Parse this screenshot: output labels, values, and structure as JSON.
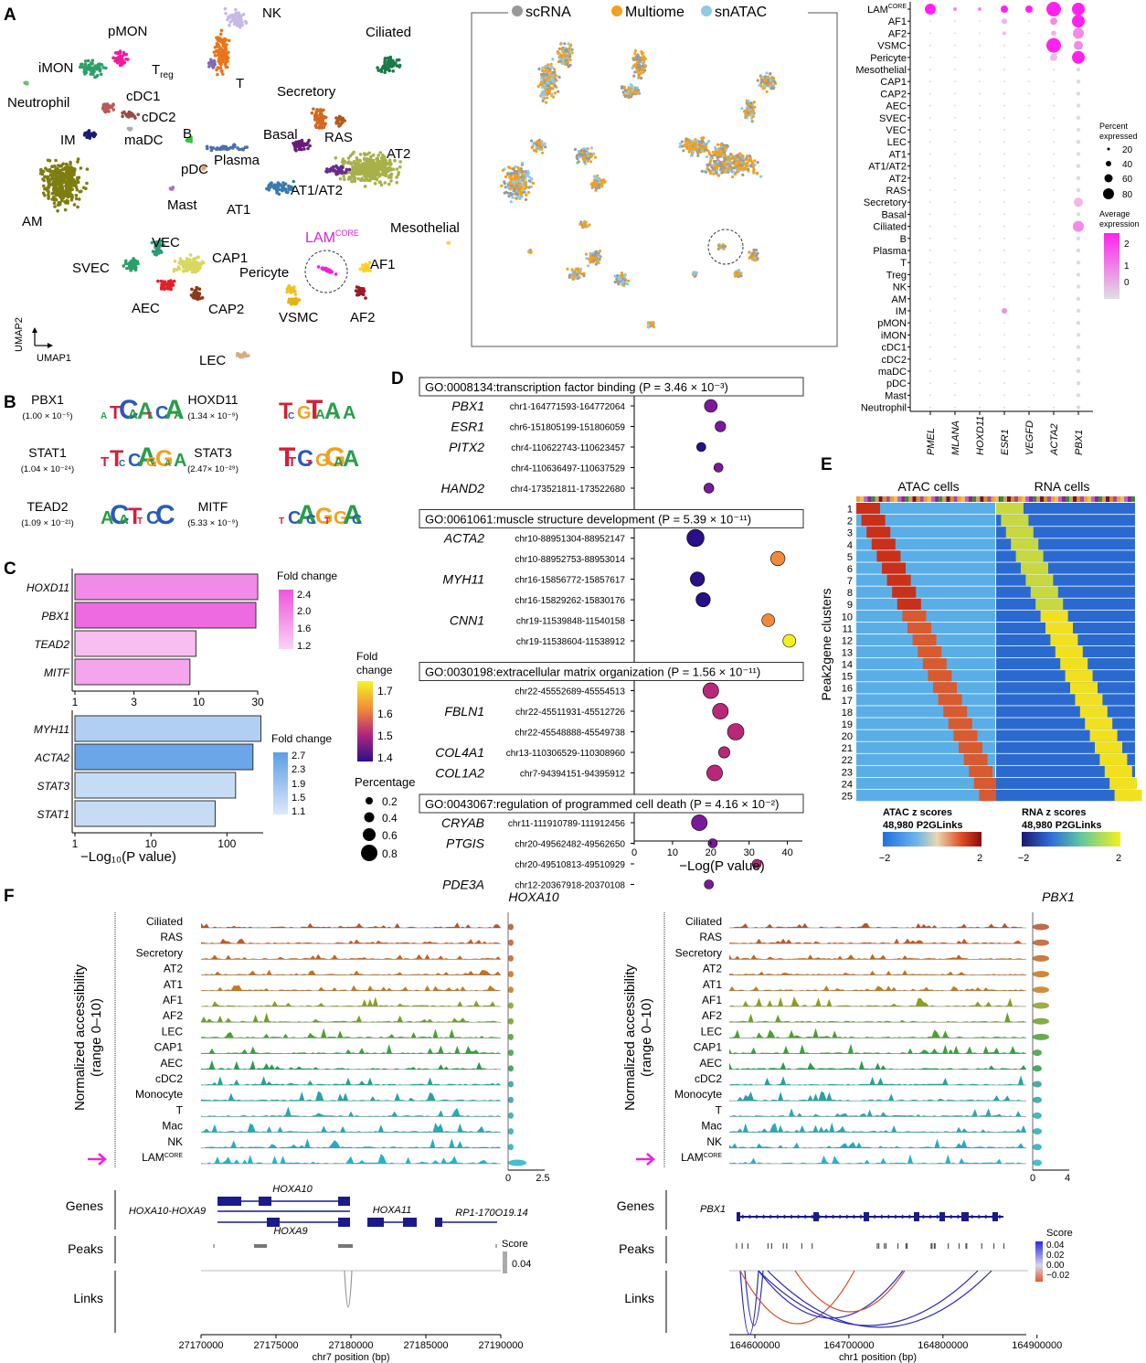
{
  "panel_letters": [
    "A",
    "B",
    "C",
    "D",
    "E",
    "F"
  ],
  "umap": {
    "axis_x": "UMAP1",
    "axis_y": "UMAP2",
    "lam_label": "LAM",
    "lam_sup": "CORE",
    "labels": [
      "NK",
      "pMON",
      "iMON",
      "Neutrophil",
      "cDC1",
      "cDC2",
      "maDC",
      "IM",
      "AM",
      "Treg",
      "T",
      "B",
      "pDC",
      "Plasma",
      "Mast",
      "Ciliated",
      "Secretory",
      "Basal",
      "RAS",
      "AT2",
      "AT1/AT2",
      "AT1",
      "Mesothelial",
      "VEC",
      "CAP1",
      "SVEC",
      "AEC",
      "CAP2",
      "Pericyte",
      "VSMC",
      "AF1",
      "AF2",
      "LEC"
    ]
  },
  "umap_modality": {
    "legend": [
      {
        "name": "scRNA",
        "color": "#999999"
      },
      {
        "name": "Multiome",
        "color": "#f5a01a"
      },
      {
        "name": "snATAC",
        "color": "#8ecae6"
      }
    ]
  },
  "dotplot": {
    "rows": [
      "LAM",
      "AF1",
      "AF2",
      "VSMC",
      "Pericyte",
      "Mesothelial",
      "CAP1",
      "CAP2",
      "AEC",
      "SVEC",
      "VEC",
      "LEC",
      "AT1",
      "AT1/AT2",
      "AT2",
      "RAS",
      "Secretory",
      "Basal",
      "Ciliated",
      "B",
      "Plasma",
      "T",
      "Treg",
      "NK",
      "AM",
      "IM",
      "pMON",
      "iMON",
      "cDC1",
      "cDC2",
      "maDC",
      "pDC",
      "Mast",
      "Neutrophil"
    ],
    "genes": [
      "PMEL",
      "MLANA",
      "HOXD11",
      "ESR1",
      "VEGFD",
      "ACTA2",
      "PBX1"
    ],
    "percent_title": "Percent expressed",
    "percent_ticks": [
      "20",
      "40",
      "60",
      "80"
    ],
    "avg_title": "Average expression",
    "avg_ticks": [
      "2",
      "1",
      "0"
    ]
  },
  "motifs": [
    {
      "name": "PBX1",
      "p": "(1.00 × 10⁻⁵)"
    },
    {
      "name": "HOXD11",
      "p": "(1.34 × 10⁻⁹)"
    },
    {
      "name": "STAT1",
      "p": "(1.04 × 10⁻²⁴)"
    },
    {
      "name": "STAT3",
      "p": "(2.47× 10⁻²⁹)"
    },
    {
      "name": "TEAD2",
      "p": "(1.09 × 10⁻²¹)"
    },
    {
      "name": "MITF",
      "p": "(5.33 × 10⁻⁹)"
    }
  ],
  "chart_data": [
    {
      "type": "bar",
      "orientation": "horizontal",
      "panel": "C-top",
      "categories": [
        "HOXD11",
        "PBX1",
        "TEAD2",
        "MITF"
      ],
      "values": [
        30,
        29,
        9.5,
        8.5
      ],
      "fold_change": [
        2.1,
        2.4,
        1.5,
        1.8
      ],
      "xscale": "log",
      "xticks": [
        "1",
        "3",
        "10",
        "30"
      ],
      "legend_title": "Fold change",
      "legend_ticks": [
        "2.4",
        "2.0",
        "1.6",
        "1.2"
      ]
    },
    {
      "type": "bar",
      "orientation": "horizontal",
      "panel": "C-bottom",
      "categories": [
        "MYH11",
        "ACTA2",
        "STAT3",
        "STAT1"
      ],
      "values": [
        280,
        220,
        130,
        70
      ],
      "fold_change": [
        1.5,
        2.3,
        1.3,
        1.4
      ],
      "xscale": "log",
      "xticks": [
        "1",
        "10",
        "100"
      ],
      "xlabel": "−Log₁₀(P value)",
      "legend_title": "Fold change",
      "legend_ticks": [
        "2.7",
        "2.3",
        "1.9",
        "1.5",
        "1.1"
      ]
    },
    {
      "type": "scatter",
      "panel": "D",
      "xlabel": "−Log(P value)",
      "xticks": [
        "0",
        "10",
        "20",
        "30",
        "40"
      ],
      "fc_legend_title": "Fold change",
      "fc_legend_ticks": [
        "1.7",
        "1.6",
        "1.5",
        "1.4"
      ],
      "pct_legend_title": "Percentage",
      "pct_legend_ticks": [
        "0.2",
        "0.4",
        "0.6",
        "0.8"
      ],
      "groups": [
        {
          "go": "GO:0008134:transcription factor binding (P = 3.46 × 10⁻³)",
          "rows": [
            {
              "gene": "PBX1",
              "peak": "chr1-164771593-164772064",
              "x": 20,
              "fc": 1.45,
              "pct": 0.5
            },
            {
              "gene": "ESR1",
              "peak": "chr6-151805199-151806059",
              "x": 22.5,
              "fc": 1.48,
              "pct": 0.35
            },
            {
              "gene": "PITX2",
              "peak": "chr4-110622743-110623457",
              "x": 17.5,
              "fc": 1.43,
              "pct": 0.25
            },
            {
              "gene": "",
              "peak": "chr4-110636497-110637529",
              "x": 22,
              "fc": 1.48,
              "pct": 0.25
            },
            {
              "gene": "HAND2",
              "peak": "chr4-173521811-173522680",
              "x": 19.5,
              "fc": 1.47,
              "pct": 0.3
            }
          ]
        },
        {
          "go": "GO:0061061:muscle structure development (P = 5.39 × 10⁻¹¹)",
          "rows": [
            {
              "gene": "ACTA2",
              "peak": "chr10-88951304-88952147",
              "x": 16,
              "fc": 1.4,
              "pct": 0.8
            },
            {
              "gene": "",
              "peak": "chr10-88952753-88953014",
              "x": 37.5,
              "fc": 1.63,
              "pct": 0.6
            },
            {
              "gene": "MYH11",
              "peak": "chr16-15856772-15857617",
              "x": 16.5,
              "fc": 1.41,
              "pct": 0.6
            },
            {
              "gene": "",
              "peak": "chr16-15829262-15830176",
              "x": 18,
              "fc": 1.42,
              "pct": 0.6
            },
            {
              "gene": "CNN1",
              "peak": "chr19-11539848-11540158",
              "x": 35,
              "fc": 1.62,
              "pct": 0.5
            },
            {
              "gene": "",
              "peak": "chr19-11538604-11538912",
              "x": 40.5,
              "fc": 1.7,
              "pct": 0.5
            }
          ]
        },
        {
          "go": "GO:0030198:extracellular matrix organization (P = 1.56 × 10⁻¹¹)",
          "rows": [
            {
              "gene": "",
              "peak": "chr22-45552689-45554513",
              "x": 20,
              "fc": 1.5,
              "pct": 0.7
            },
            {
              "gene": "FBLN1",
              "peak": "chr22-45511931-45512726",
              "x": 22.5,
              "fc": 1.5,
              "pct": 0.7
            },
            {
              "gene": "",
              "peak": "chr22-45548888-45549738",
              "x": 26.5,
              "fc": 1.55,
              "pct": 0.75
            },
            {
              "gene": "COL4A1",
              "peak": "chr13-110306529-110308960",
              "x": 23.5,
              "fc": 1.52,
              "pct": 0.4
            },
            {
              "gene": "COL1A2",
              "peak": "chr7-94394151-94395912",
              "x": 21,
              "fc": 1.52,
              "pct": 0.7
            }
          ]
        },
        {
          "go": "GO:0043067:regulation of programmed cell death (P = 4.16 × 10⁻²)",
          "rows": [
            {
              "gene": "CRYAB",
              "peak": "chr11-111910789-111912456",
              "x": 17,
              "fc": 1.45,
              "pct": 0.7
            },
            {
              "gene": "PTGIS",
              "peak": "chr20-49562482-49562650",
              "x": 20.5,
              "fc": 1.45,
              "pct": 0.25
            },
            {
              "gene": "",
              "peak": "chr20-49510813-49510929",
              "x": 32,
              "fc": 1.5,
              "pct": 0.25
            },
            {
              "gene": "PDE3A",
              "peak": "chr12-20367918-20370108",
              "x": 19.5,
              "fc": 1.47,
              "pct": 0.25
            }
          ]
        }
      ]
    }
  ],
  "heatmap": {
    "atac_title": "ATAC cells",
    "rna_title": "RNA cells",
    "ylabel": "Peak2gene clusters",
    "clusters": [
      "1",
      "2",
      "3",
      "4",
      "5",
      "6",
      "7",
      "8",
      "9",
      "10",
      "11",
      "12",
      "13",
      "14",
      "15",
      "16",
      "17",
      "18",
      "19",
      "20",
      "21",
      "22",
      "23",
      "24",
      "25"
    ],
    "atac_scale_title": "ATAC z scores",
    "rna_scale_title": "RNA z scores",
    "links": "48,980 P2GLinks",
    "scale_min": "−2",
    "scale_max": "2"
  },
  "tracks": {
    "ylabel_1": "Normalized accessibility",
    "ylabel_2": "(range 0–10)",
    "left": {
      "gene": "HOXA10",
      "cells": [
        "Ciliated",
        "RAS",
        "Secretory",
        "AT2",
        "AT1",
        "AF1",
        "AF2",
        "LEC",
        "CAP1",
        "AEC",
        "cDC2",
        "Monocyte",
        "T",
        "Mac",
        "NK",
        "LAM"
      ],
      "violin_ticks": [
        "0",
        "2.5"
      ],
      "gene_labels": [
        "HOXA10",
        "HOXA10-HOXA9",
        "HOXA9",
        "HOXA11",
        "RP1-170O19.14"
      ],
      "xticks": [
        "27170000",
        "27175000",
        "27180000",
        "27185000",
        "27190000"
      ],
      "xlabel": "chr7 position (bp)",
      "score_title": "Score",
      "score_value": "0.04"
    },
    "right": {
      "gene": "PBX1",
      "cells": [
        "Ciliated",
        "RAS",
        "Secretory",
        "AT2",
        "AT1",
        "AF1",
        "AF2",
        "LEC",
        "CAP1",
        "AEC",
        "cDC2",
        "Monocyte",
        "T",
        "Mac",
        "NK",
        "LAM"
      ],
      "violin_ticks": [
        "0",
        "4"
      ],
      "gene_labels": [
        "PBX1"
      ],
      "xticks": [
        "164600000",
        "164700000",
        "164800000",
        "164900000"
      ],
      "xlabel": "chr1 position (bp)",
      "score_title": "Score",
      "score_ticks": [
        "0.04",
        "0.02",
        "0.00",
        "−0.02"
      ]
    },
    "row_titles": [
      "Genes",
      "Peaks",
      "Links"
    ]
  }
}
